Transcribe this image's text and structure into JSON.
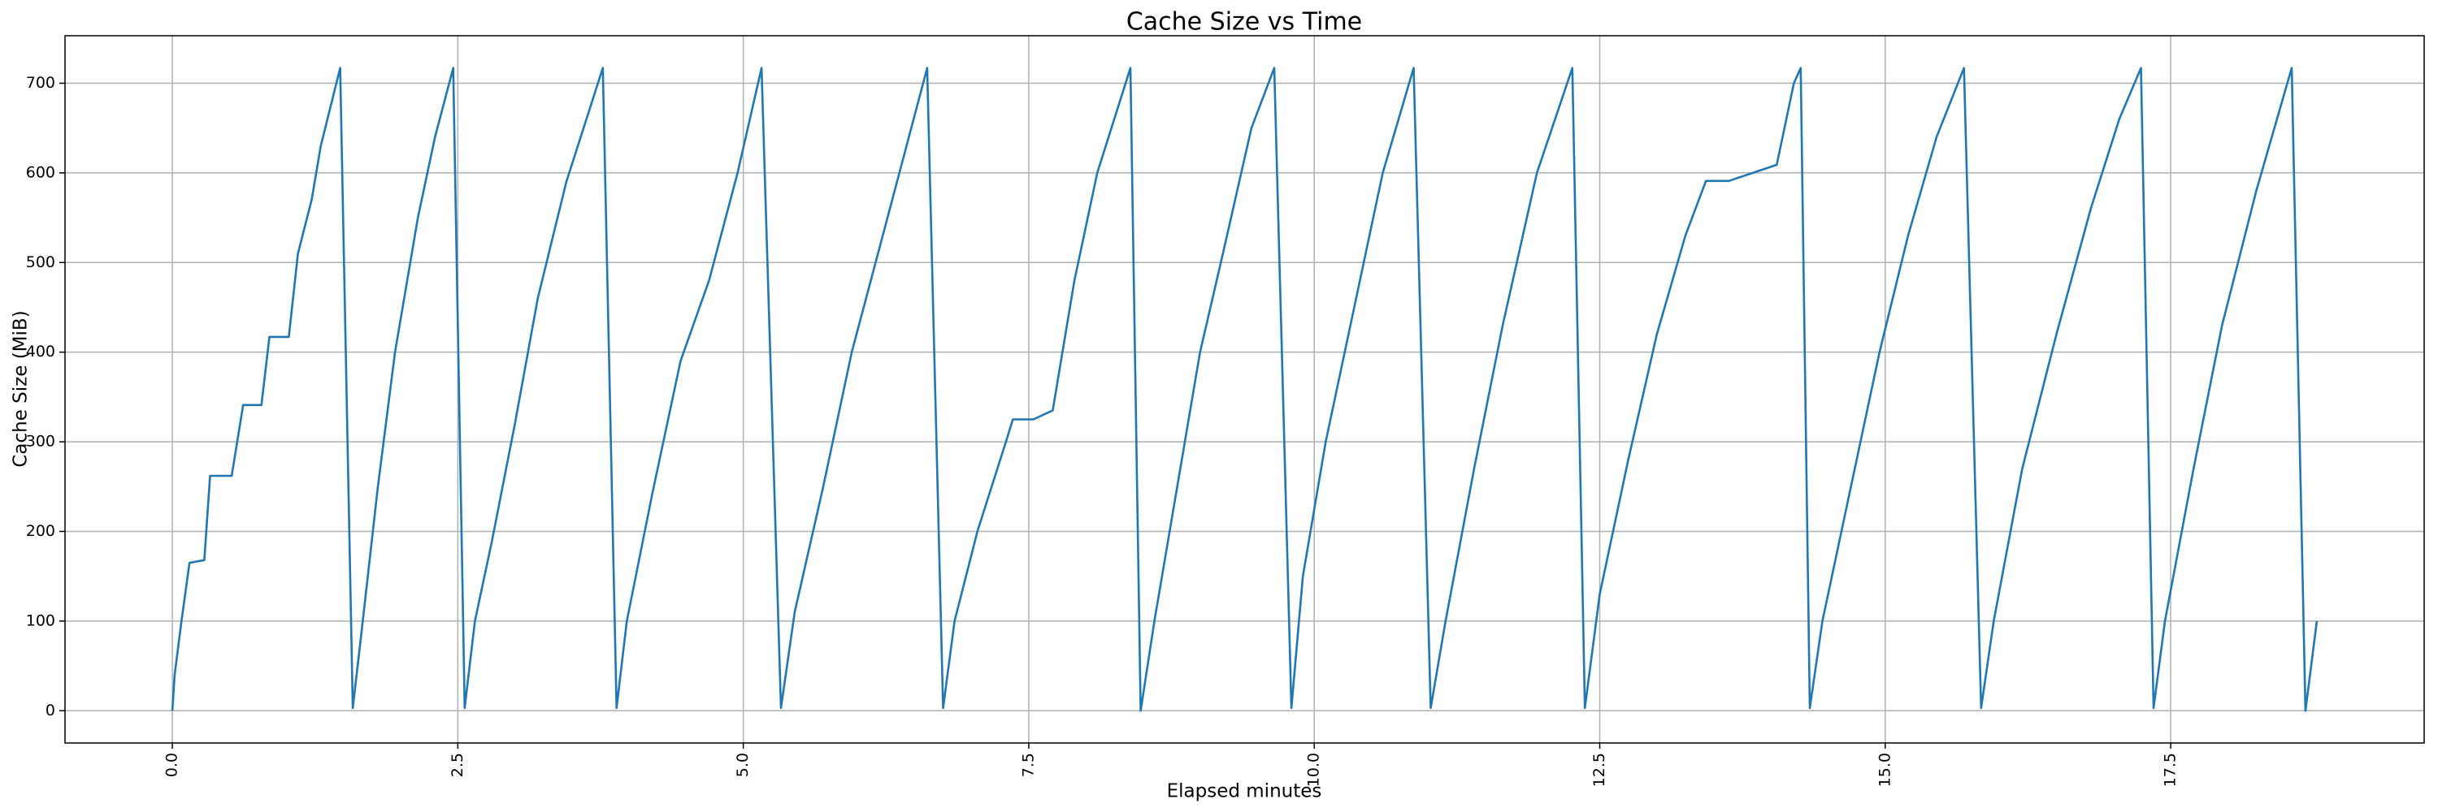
{
  "chart_data": {
    "type": "line",
    "title": "Cache Size vs Time",
    "x_label": "Elapsed minutes",
    "y_label": "Cache Size (MiB)",
    "grid": true,
    "xlim": [
      -0.94,
      19.72
    ],
    "ylim": [
      -36,
      753
    ],
    "xticks": [
      {
        "value": 0,
        "label": "0.0"
      },
      2.5,
      {
        "value": 5,
        "label": "5.0"
      },
      7.5,
      {
        "value": 10,
        "label": "10.0"
      },
      12.5,
      {
        "value": 15,
        "label": "15.0"
      },
      17.5
    ],
    "yticks": [
      0,
      100,
      200,
      300,
      400,
      500,
      600,
      700
    ],
    "x": [
      0,
      0.02,
      0.08,
      0.15,
      0.28,
      0.33,
      0.52,
      0.62,
      0.78,
      0.85,
      1.02,
      1.1,
      1.22,
      1.3,
      1.47,
      1.58,
      1.65,
      1.8,
      1.95,
      2.15,
      2.3,
      2.46,
      2.56,
      2.65,
      2.8,
      3.0,
      3.2,
      3.45,
      3.77,
      3.89,
      3.98,
      4.2,
      4.45,
      4.7,
      4.95,
      5.16,
      5.33,
      5.45,
      5.7,
      5.95,
      6.2,
      6.45,
      6.61,
      6.75,
      6.85,
      7.05,
      7.3,
      7.36,
      7.54,
      7.71,
      7.9,
      8.1,
      8.39,
      8.48,
      8.6,
      8.8,
      9.0,
      9.2,
      9.45,
      9.65,
      9.8,
      9.9,
      10.1,
      10.35,
      10.6,
      10.87,
      11.02,
      11.15,
      11.4,
      11.65,
      11.95,
      12.26,
      12.37,
      12.5,
      12.75,
      13.0,
      13.25,
      13.43,
      13.63,
      14.05,
      14.2,
      14.26,
      14.34,
      14.45,
      14.7,
      14.95,
      15.2,
      15.45,
      15.69,
      15.84,
      15.95,
      16.2,
      16.5,
      16.8,
      17.05,
      17.24,
      17.35,
      17.45,
      17.7,
      17.95,
      18.25,
      18.56,
      18.68,
      18.78
    ],
    "series": [
      {
        "name": "Cache Size",
        "color": "#1f77b4",
        "values": [
          0,
          40,
          100,
          165,
          168,
          262,
          262,
          341,
          341,
          417,
          417,
          510,
          570,
          630,
          717,
          3,
          80,
          250,
          400,
          550,
          640,
          717,
          3,
          100,
          190,
          320,
          460,
          590,
          717,
          3,
          100,
          240,
          390,
          480,
          600,
          717,
          3,
          110,
          250,
          400,
          520,
          640,
          717,
          3,
          100,
          200,
          300,
          325,
          325,
          335,
          480,
          600,
          717,
          0,
          100,
          250,
          400,
          510,
          650,
          717,
          3,
          150,
          300,
          450,
          600,
          717,
          3,
          100,
          270,
          430,
          600,
          717,
          3,
          130,
          280,
          420,
          530,
          591,
          591,
          609,
          700,
          717,
          3,
          100,
          250,
          400,
          530,
          640,
          717,
          3,
          100,
          270,
          420,
          560,
          660,
          717,
          3,
          100,
          270,
          430,
          580,
          717,
          0,
          100
        ]
      }
    ]
  }
}
